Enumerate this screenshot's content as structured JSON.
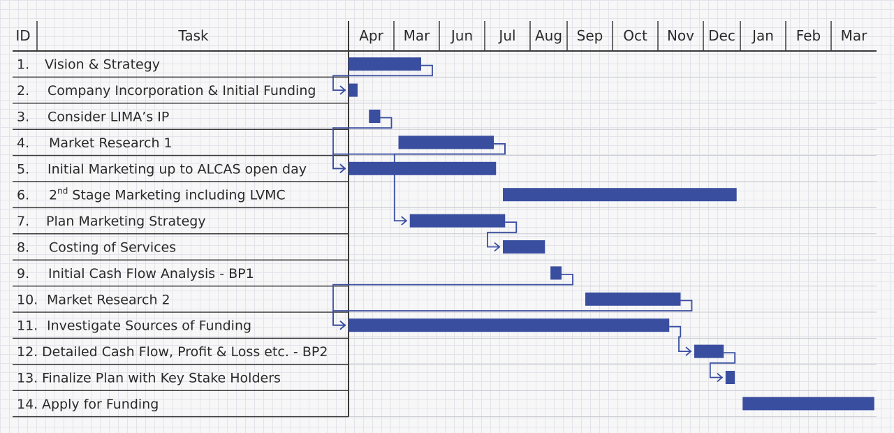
{
  "chart_data": {
    "type": "gantt",
    "headers": {
      "id": "ID",
      "task": "Task"
    },
    "months": [
      "Apr",
      "Mar",
      "Jun",
      "Jul",
      "Aug",
      "Sep",
      "Oct",
      "Nov",
      "Dec",
      "Jan",
      "Feb",
      "Mar"
    ],
    "tasks": [
      {
        "num": "1.",
        "label": "Vision & Strategy",
        "start": 0.0,
        "end": 1.6
      },
      {
        "num": "2.",
        "label": "Company Incorporation & Initial Funding",
        "start": 0.0,
        "end": 0.2
      },
      {
        "num": "3.",
        "label": "Consider LIMA’s IP",
        "start": 0.45,
        "end": 0.7
      },
      {
        "num": "4.",
        "label": "Market Research 1",
        "start": 1.1,
        "end": 3.2
      },
      {
        "num": "5.",
        "label": "Initial Marketing up to ALCAS open day",
        "start": 0.0,
        "end": 3.25
      },
      {
        "num": "6.",
        "label_pre": "2",
        "label_sup": "nd",
        "label": " Stage Marketing including LVMC",
        "start": 3.4,
        "end": 8.9
      },
      {
        "num": "7.",
        "label": "Plan Marketing Strategy",
        "start": 1.35,
        "end": 3.45
      },
      {
        "num": "8.",
        "label": "Costing of Services",
        "start": 3.4,
        "end": 4.4
      },
      {
        "num": "9.",
        "label": "Initial Cash Flow Analysis - BP1",
        "start": 4.55,
        "end": 4.85
      },
      {
        "num": "10.",
        "label": "Market Research 2",
        "start": 5.4,
        "end": 7.5
      },
      {
        "num": "11.",
        "label": "Investigate Sources of Funding",
        "start": 0.0,
        "end": 7.25
      },
      {
        "num": "12.",
        "label": "Detailed Cash Flow, Profit & Loss etc. - BP2",
        "start": 7.8,
        "end": 8.55
      },
      {
        "num": "13.",
        "label": "Finalize Plan with Key Stake Holders",
        "start": 8.6,
        "end": 8.85
      },
      {
        "num": "14.",
        "label": "Apply for Funding",
        "start": 9.05,
        "end": 11.95
      }
    ],
    "dependencies": [
      [
        1,
        2
      ],
      [
        3,
        5
      ],
      [
        4,
        5
      ],
      [
        4,
        7
      ],
      [
        7,
        8
      ],
      [
        9,
        11
      ],
      [
        10,
        11
      ],
      [
        11,
        12
      ],
      [
        12,
        13
      ]
    ],
    "bar_color": "#3a4ea0"
  }
}
